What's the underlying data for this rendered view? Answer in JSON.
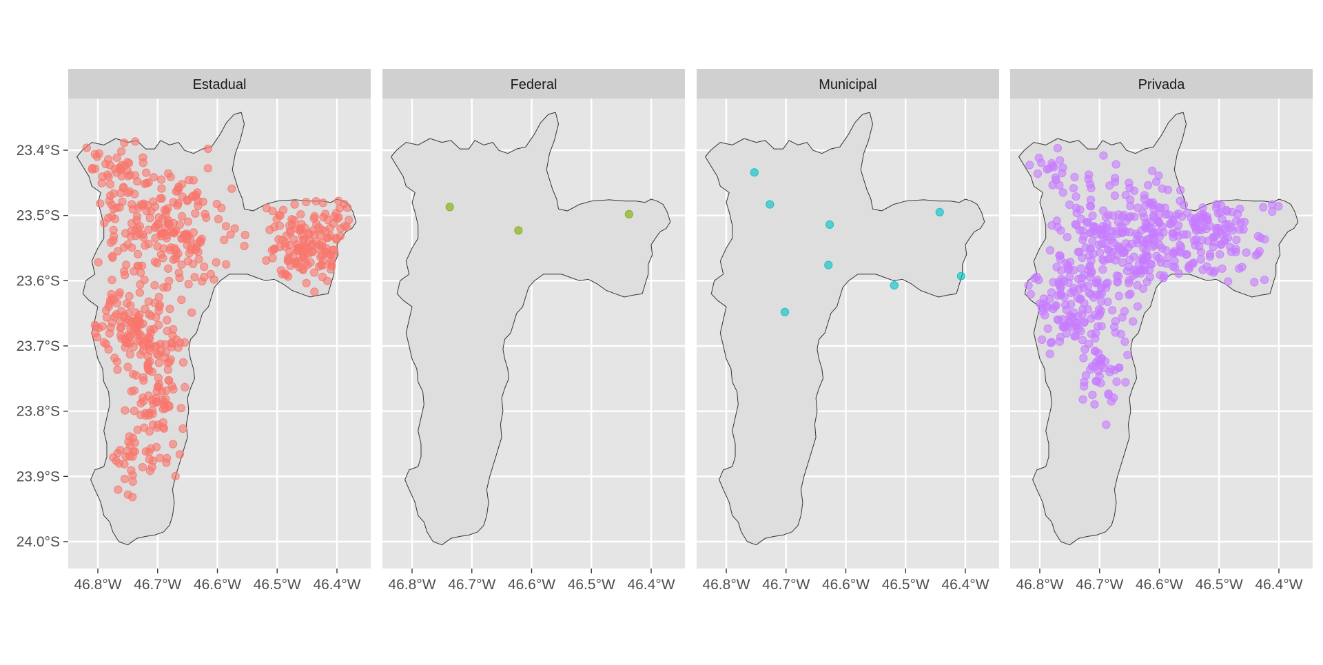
{
  "chart_data": {
    "type": "scatter",
    "subtype": "faceted-map",
    "panel_background": "#e5e5e5",
    "strip_background": "#d0d0d0",
    "gridlines": true,
    "legend": "none",
    "xlim": [
      -46.85,
      -46.35
    ],
    "ylim": [
      -24.04,
      -23.34
    ],
    "x_ticks": [
      {
        "value": -46.8,
        "label": "46.8°W"
      },
      {
        "value": -46.7,
        "label": "46.7°W"
      },
      {
        "value": -46.6,
        "label": "46.6°W"
      },
      {
        "value": -46.5,
        "label": "46.5°W"
      },
      {
        "value": -46.4,
        "label": "46.4°W"
      }
    ],
    "y_ticks": [
      {
        "value": -23.4,
        "label": "23.4°S"
      },
      {
        "value": -23.5,
        "label": "23.5°S"
      },
      {
        "value": -23.6,
        "label": "23.6°S"
      },
      {
        "value": -23.7,
        "label": "23.7°S"
      },
      {
        "value": -23.8,
        "label": "23.8°S"
      },
      {
        "value": -23.9,
        "label": "23.9°S"
      },
      {
        "value": -24.0,
        "label": "24.0°S"
      }
    ],
    "boundary": [
      [
        -46.826,
        -23.4
      ],
      [
        -46.81,
        -23.388
      ],
      [
        -46.79,
        -23.392
      ],
      [
        -46.77,
        -23.382
      ],
      [
        -46.75,
        -23.388
      ],
      [
        -46.735,
        -23.385
      ],
      [
        -46.72,
        -23.398
      ],
      [
        -46.705,
        -23.398
      ],
      [
        -46.695,
        -23.385
      ],
      [
        -46.68,
        -23.392
      ],
      [
        -46.665,
        -23.388
      ],
      [
        -46.655,
        -23.4
      ],
      [
        -46.64,
        -23.405
      ],
      [
        -46.625,
        -23.398
      ],
      [
        -46.61,
        -23.395
      ],
      [
        -46.595,
        -23.375
      ],
      [
        -46.585,
        -23.358
      ],
      [
        -46.572,
        -23.345
      ],
      [
        -46.56,
        -23.342
      ],
      [
        -46.555,
        -23.36
      ],
      [
        -46.562,
        -23.385
      ],
      [
        -46.57,
        -23.405
      ],
      [
        -46.575,
        -23.43
      ],
      [
        -46.57,
        -23.445
      ],
      [
        -46.565,
        -23.46
      ],
      [
        -46.558,
        -23.475
      ],
      [
        -46.555,
        -23.49
      ],
      [
        -46.54,
        -23.493
      ],
      [
        -46.52,
        -23.483
      ],
      [
        -46.5,
        -23.478
      ],
      [
        -46.47,
        -23.476
      ],
      [
        -46.445,
        -23.478
      ],
      [
        -46.425,
        -23.478
      ],
      [
        -46.41,
        -23.48
      ],
      [
        -46.4,
        -23.475
      ],
      [
        -46.39,
        -23.478
      ],
      [
        -46.38,
        -23.483
      ],
      [
        -46.373,
        -23.495
      ],
      [
        -46.368,
        -23.51
      ],
      [
        -46.375,
        -23.52
      ],
      [
        -46.385,
        -23.525
      ],
      [
        -46.393,
        -23.535
      ],
      [
        -46.4,
        -23.545
      ],
      [
        -46.398,
        -23.56
      ],
      [
        -46.405,
        -23.575
      ],
      [
        -46.405,
        -23.59
      ],
      [
        -46.41,
        -23.605
      ],
      [
        -46.415,
        -23.62
      ],
      [
        -46.43,
        -23.622
      ],
      [
        -46.445,
        -23.625
      ],
      [
        -46.46,
        -23.62
      ],
      [
        -46.475,
        -23.615
      ],
      [
        -46.49,
        -23.605
      ],
      [
        -46.505,
        -23.598
      ],
      [
        -46.52,
        -23.6
      ],
      [
        -46.535,
        -23.595
      ],
      [
        -46.55,
        -23.59
      ],
      [
        -46.565,
        -23.59
      ],
      [
        -46.58,
        -23.59
      ],
      [
        -46.595,
        -23.6
      ],
      [
        -46.605,
        -23.61
      ],
      [
        -46.61,
        -23.625
      ],
      [
        -46.615,
        -23.64
      ],
      [
        -46.625,
        -23.65
      ],
      [
        -46.63,
        -23.665
      ],
      [
        -46.635,
        -23.68
      ],
      [
        -46.645,
        -23.69
      ],
      [
        -46.648,
        -23.705
      ],
      [
        -46.645,
        -23.72
      ],
      [
        -46.64,
        -23.735
      ],
      [
        -46.638,
        -23.75
      ],
      [
        -46.645,
        -23.765
      ],
      [
        -46.65,
        -23.78
      ],
      [
        -46.648,
        -23.8
      ],
      [
        -46.652,
        -23.82
      ],
      [
        -46.65,
        -23.84
      ],
      [
        -46.655,
        -23.855
      ],
      [
        -46.66,
        -23.87
      ],
      [
        -46.665,
        -23.885
      ],
      [
        -46.67,
        -23.9
      ],
      [
        -46.675,
        -23.92
      ],
      [
        -46.672,
        -23.94
      ],
      [
        -46.675,
        -23.96
      ],
      [
        -46.68,
        -23.975
      ],
      [
        -46.69,
        -23.985
      ],
      [
        -46.705,
        -23.99
      ],
      [
        -46.72,
        -23.992
      ],
      [
        -46.735,
        -23.995
      ],
      [
        -46.75,
        -24.005
      ],
      [
        -46.765,
        -24.0
      ],
      [
        -46.775,
        -23.985
      ],
      [
        -46.78,
        -23.97
      ],
      [
        -46.79,
        -23.96
      ],
      [
        -46.795,
        -23.94
      ],
      [
        -46.805,
        -23.92
      ],
      [
        -46.812,
        -23.905
      ],
      [
        -46.805,
        -23.89
      ],
      [
        -46.79,
        -23.885
      ],
      [
        -46.785,
        -23.87
      ],
      [
        -46.785,
        -23.85
      ],
      [
        -46.79,
        -23.83
      ],
      [
        -46.785,
        -23.81
      ],
      [
        -46.78,
        -23.79
      ],
      [
        -46.782,
        -23.77
      ],
      [
        -46.79,
        -23.755
      ],
      [
        -46.792,
        -23.735
      ],
      [
        -46.8,
        -23.72
      ],
      [
        -46.805,
        -23.7
      ],
      [
        -46.81,
        -23.68
      ],
      [
        -46.805,
        -23.66
      ],
      [
        -46.8,
        -23.64
      ],
      [
        -46.815,
        -23.63
      ],
      [
        -46.825,
        -23.62
      ],
      [
        -46.82,
        -23.6
      ],
      [
        -46.805,
        -23.59
      ],
      [
        -46.81,
        -23.57
      ],
      [
        -46.8,
        -23.55
      ],
      [
        -46.79,
        -23.535
      ],
      [
        -46.79,
        -23.515
      ],
      [
        -46.795,
        -23.495
      ],
      [
        -46.8,
        -23.48
      ],
      [
        -46.795,
        -23.465
      ],
      [
        -46.81,
        -23.455
      ],
      [
        -46.815,
        -23.44
      ],
      [
        -46.825,
        -23.425
      ],
      [
        -46.835,
        -23.41
      ]
    ],
    "panels": [
      {
        "title": "Estadual",
        "color": "#f8766d",
        "points": {
          "generated": true,
          "count": 620,
          "seed": 11,
          "clusters": [
            {
              "x": -46.75,
              "y": -23.67,
              "sx": 0.035,
              "sy": 0.03,
              "w": 0.2
            },
            {
              "x": -46.7,
              "y": -23.76,
              "sx": 0.025,
              "sy": 0.05,
              "w": 0.12
            },
            {
              "x": -46.69,
              "y": -23.52,
              "sx": 0.06,
              "sy": 0.05,
              "w": 0.28
            },
            {
              "x": -46.44,
              "y": -23.54,
              "sx": 0.05,
              "sy": 0.035,
              "w": 0.3
            },
            {
              "x": -46.74,
              "y": -23.87,
              "sx": 0.025,
              "sy": 0.03,
              "w": 0.04
            },
            {
              "x": -46.77,
              "y": -23.44,
              "sx": 0.03,
              "sy": 0.03,
              "w": 0.06
            }
          ]
        }
      },
      {
        "title": "Federal",
        "color": "#7cae00",
        "points": [
          {
            "x": -46.737,
            "y": -23.487
          },
          {
            "x": -46.622,
            "y": -23.523
          },
          {
            "x": -46.437,
            "y": -23.498
          }
        ]
      },
      {
        "title": "Municipal",
        "color": "#00bfc4",
        "points": [
          {
            "x": -46.753,
            "y": -23.434
          },
          {
            "x": -46.727,
            "y": -23.483
          },
          {
            "x": -46.627,
            "y": -23.514
          },
          {
            "x": -46.629,
            "y": -23.576
          },
          {
            "x": -46.702,
            "y": -23.648
          },
          {
            "x": -46.519,
            "y": -23.607
          },
          {
            "x": -46.443,
            "y": -23.495
          },
          {
            "x": -46.407,
            "y": -23.593
          }
        ]
      },
      {
        "title": "Privada",
        "color": "#c77cff",
        "points": {
          "generated": true,
          "count": 560,
          "seed": 29,
          "clusters": [
            {
              "x": -46.66,
              "y": -23.55,
              "sx": 0.055,
              "sy": 0.06,
              "w": 0.42
            },
            {
              "x": -46.75,
              "y": -23.64,
              "sx": 0.03,
              "sy": 0.035,
              "w": 0.14
            },
            {
              "x": -46.52,
              "y": -23.53,
              "sx": 0.06,
              "sy": 0.04,
              "w": 0.26
            },
            {
              "x": -46.7,
              "y": -23.74,
              "sx": 0.02,
              "sy": 0.03,
              "w": 0.08
            },
            {
              "x": -46.78,
              "y": -23.44,
              "sx": 0.02,
              "sy": 0.03,
              "w": 0.05
            }
          ]
        }
      }
    ]
  }
}
